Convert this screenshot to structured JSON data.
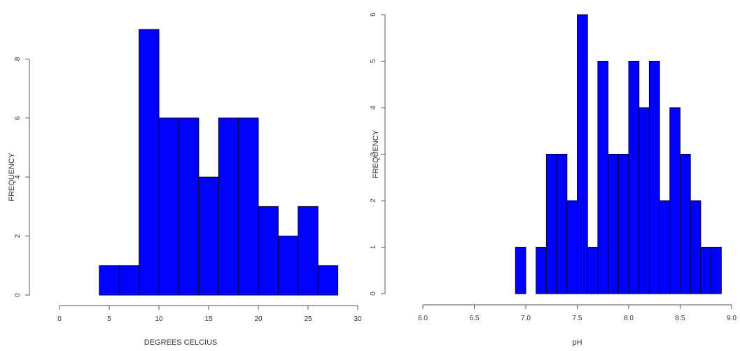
{
  "chart_data": [
    {
      "type": "bar",
      "title": "",
      "xlabel": "DEGREES CELCIUS",
      "ylabel": "FREQUENCY",
      "bin_edges": [
        4,
        6,
        8,
        10,
        12,
        14,
        16,
        18,
        20,
        22,
        24,
        26,
        28
      ],
      "values": [
        1,
        1,
        9,
        6,
        6,
        4,
        6,
        6,
        3,
        2,
        3,
        1
      ],
      "xlim": [
        0,
        30
      ],
      "ylim": [
        0,
        9
      ],
      "x_ticks": [
        "0",
        "5",
        "10",
        "15",
        "20",
        "25",
        "30"
      ],
      "y_ticks": [
        "0",
        "2",
        "4",
        "6",
        "8"
      ],
      "bar_color": "#0000ff",
      "grid": false,
      "legend": "none"
    },
    {
      "type": "bar",
      "title": "",
      "xlabel": "pH",
      "ylabel": "FREQUENCY",
      "bin_edges": [
        6.9,
        7.0,
        7.1,
        7.2,
        7.3,
        7.4,
        7.5,
        7.6,
        7.7,
        7.8,
        7.9,
        8.0,
        8.1,
        8.2,
        8.3,
        8.4,
        8.5,
        8.6,
        8.7,
        8.8,
        8.9
      ],
      "values": [
        1,
        0,
        1,
        3,
        3,
        2,
        6,
        1,
        5,
        3,
        3,
        5,
        4,
        5,
        2,
        4,
        3,
        2,
        1,
        1
      ],
      "xlim": [
        6.0,
        9.0
      ],
      "ylim": [
        0,
        6
      ],
      "x_ticks": [
        "6.0",
        "6.5",
        "7.0",
        "7.5",
        "8.0",
        "8.5",
        "9.0"
      ],
      "y_ticks": [
        "0",
        "1",
        "2",
        "3",
        "4",
        "5",
        "6"
      ],
      "bar_color": "#0000ff",
      "grid": false,
      "legend": "none"
    }
  ]
}
